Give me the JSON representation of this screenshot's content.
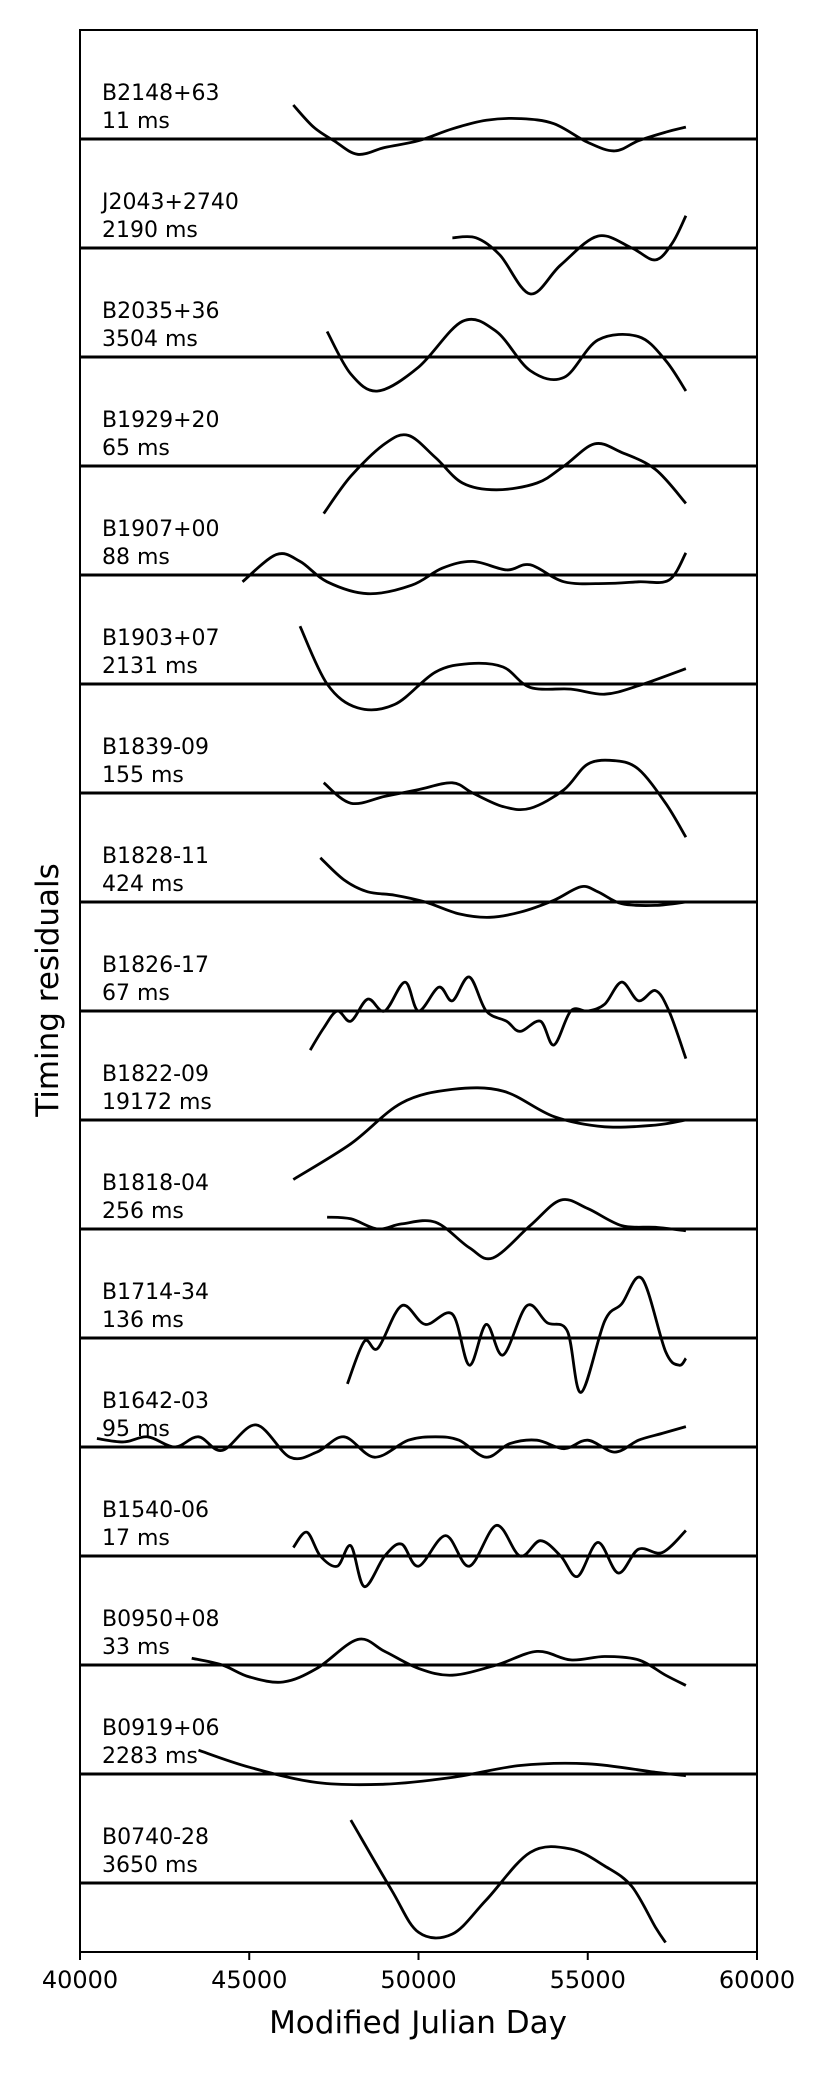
{
  "chart_data": {
    "type": "line",
    "title": "",
    "xlabel": "Modified Julian Day",
    "ylabel": "Timing residuals",
    "xlim": [
      40000,
      60000
    ],
    "xticks": [
      "40000",
      "45000",
      "50000",
      "55000",
      "60000"
    ],
    "series_color": "#000000",
    "series": [
      {
        "name": "B2148+63",
        "scale": "11 ms",
        "points": [
          [
            46300,
            1.0
          ],
          [
            46900,
            0.35
          ],
          [
            47500,
            -0.05
          ],
          [
            48200,
            -0.45
          ],
          [
            49000,
            -0.25
          ],
          [
            50000,
            -0.05
          ],
          [
            51000,
            0.3
          ],
          [
            52000,
            0.55
          ],
          [
            53000,
            0.6
          ],
          [
            54000,
            0.45
          ],
          [
            55000,
            -0.1
          ],
          [
            55800,
            -0.35
          ],
          [
            56500,
            -0.05
          ],
          [
            57300,
            0.2
          ],
          [
            57900,
            0.35
          ]
        ]
      },
      {
        "name": "J2043+2740",
        "scale": "2190 ms",
        "points": [
          [
            51000,
            0.3
          ],
          [
            51700,
            0.3
          ],
          [
            52400,
            -0.2
          ],
          [
            53300,
            -1.35
          ],
          [
            54200,
            -0.5
          ],
          [
            55300,
            0.35
          ],
          [
            56300,
            0.0
          ],
          [
            57000,
            -0.35
          ],
          [
            57500,
            0.15
          ],
          [
            57900,
            0.95
          ]
        ]
      },
      {
        "name": "B2035+36",
        "scale": "3504 ms",
        "points": [
          [
            47300,
            0.75
          ],
          [
            48000,
            -0.5
          ],
          [
            48800,
            -1.0
          ],
          [
            50000,
            -0.3
          ],
          [
            51300,
            1.05
          ],
          [
            52300,
            0.75
          ],
          [
            53300,
            -0.4
          ],
          [
            54300,
            -0.6
          ],
          [
            55300,
            0.5
          ],
          [
            56500,
            0.6
          ],
          [
            57300,
            -0.1
          ],
          [
            57900,
            -1.0
          ]
        ]
      },
      {
        "name": "B1929+20",
        "scale": "65 ms",
        "points": [
          [
            47200,
            -1.4
          ],
          [
            48000,
            -0.3
          ],
          [
            49000,
            0.65
          ],
          [
            49700,
            0.9
          ],
          [
            50500,
            0.25
          ],
          [
            51300,
            -0.5
          ],
          [
            52300,
            -0.7
          ],
          [
            53500,
            -0.5
          ],
          [
            54300,
            0.0
          ],
          [
            55200,
            0.65
          ],
          [
            56000,
            0.4
          ],
          [
            57000,
            -0.1
          ],
          [
            57900,
            -1.1
          ]
        ]
      },
      {
        "name": "B1907+00",
        "scale": "88 ms",
        "points": [
          [
            44800,
            -0.2
          ],
          [
            45800,
            0.6
          ],
          [
            46500,
            0.4
          ],
          [
            47300,
            -0.2
          ],
          [
            48500,
            -0.55
          ],
          [
            49800,
            -0.3
          ],
          [
            50700,
            0.2
          ],
          [
            51600,
            0.4
          ],
          [
            52600,
            0.15
          ],
          [
            53300,
            0.3
          ],
          [
            54300,
            -0.2
          ],
          [
            55500,
            -0.25
          ],
          [
            56500,
            -0.2
          ],
          [
            57400,
            -0.15
          ],
          [
            57900,
            0.65
          ]
        ]
      },
      {
        "name": "B1903+07",
        "scale": "2131 ms",
        "points": [
          [
            46500,
            1.7
          ],
          [
            47300,
            0.0
          ],
          [
            48200,
            -0.7
          ],
          [
            49300,
            -0.6
          ],
          [
            50500,
            0.35
          ],
          [
            51500,
            0.6
          ],
          [
            52500,
            0.5
          ],
          [
            53300,
            -0.1
          ],
          [
            54500,
            -0.15
          ],
          [
            55500,
            -0.3
          ],
          [
            56500,
            -0.05
          ],
          [
            57900,
            0.45
          ]
        ]
      },
      {
        "name": "B1839-09",
        "scale": "155 ms",
        "points": [
          [
            47200,
            0.3
          ],
          [
            48000,
            -0.3
          ],
          [
            49000,
            -0.1
          ],
          [
            50000,
            0.1
          ],
          [
            51000,
            0.3
          ],
          [
            51600,
            0.0
          ],
          [
            52500,
            -0.4
          ],
          [
            53300,
            -0.45
          ],
          [
            54300,
            0.1
          ],
          [
            55000,
            0.85
          ],
          [
            55800,
            0.95
          ],
          [
            56500,
            0.7
          ],
          [
            57300,
            -0.3
          ],
          [
            57900,
            -1.3
          ]
        ]
      },
      {
        "name": "B1828-11",
        "scale": "424 ms",
        "points": [
          [
            47100,
            1.3
          ],
          [
            47800,
            0.65
          ],
          [
            48500,
            0.3
          ],
          [
            49300,
            0.2
          ],
          [
            50200,
            0.0
          ],
          [
            51200,
            -0.35
          ],
          [
            52100,
            -0.45
          ],
          [
            53000,
            -0.3
          ],
          [
            54000,
            0.05
          ],
          [
            54800,
            0.45
          ],
          [
            55300,
            0.3
          ],
          [
            56000,
            -0.05
          ],
          [
            57000,
            -0.1
          ],
          [
            57900,
            0.0
          ]
        ]
      },
      {
        "name": "B1826-17",
        "scale": "67 ms",
        "points": [
          [
            46800,
            -1.15
          ],
          [
            47200,
            -0.5
          ],
          [
            47600,
            0.0
          ],
          [
            48000,
            -0.3
          ],
          [
            48500,
            0.35
          ],
          [
            49000,
            0.0
          ],
          [
            49600,
            0.85
          ],
          [
            50000,
            0.0
          ],
          [
            50600,
            0.7
          ],
          [
            51000,
            0.3
          ],
          [
            51500,
            1.0
          ],
          [
            52000,
            0.0
          ],
          [
            52600,
            -0.3
          ],
          [
            53000,
            -0.6
          ],
          [
            53600,
            -0.3
          ],
          [
            54000,
            -1.0
          ],
          [
            54500,
            0.0
          ],
          [
            55000,
            0.0
          ],
          [
            55500,
            0.2
          ],
          [
            56000,
            0.85
          ],
          [
            56500,
            0.3
          ],
          [
            57000,
            0.6
          ],
          [
            57400,
            0.0
          ],
          [
            57900,
            -1.4
          ]
        ]
      },
      {
        "name": "B1822-09",
        "scale": "19172 ms",
        "points": [
          [
            46300,
            -1.75
          ],
          [
            48000,
            -0.7
          ],
          [
            49500,
            0.5
          ],
          [
            51000,
            0.9
          ],
          [
            52500,
            0.85
          ],
          [
            54000,
            0.1
          ],
          [
            55500,
            -0.2
          ],
          [
            57000,
            -0.15
          ],
          [
            57900,
            0.0
          ]
        ]
      },
      {
        "name": "B1818-04",
        "scale": "256 ms",
        "points": [
          [
            47300,
            0.35
          ],
          [
            48000,
            0.3
          ],
          [
            48800,
            0.0
          ],
          [
            49500,
            0.15
          ],
          [
            50500,
            0.2
          ],
          [
            51500,
            -0.55
          ],
          [
            52200,
            -0.85
          ],
          [
            53300,
            0.1
          ],
          [
            54200,
            0.85
          ],
          [
            55000,
            0.6
          ],
          [
            56000,
            0.1
          ],
          [
            57000,
            0.05
          ],
          [
            57900,
            -0.05
          ]
        ]
      },
      {
        "name": "B1714-34",
        "scale": "136 ms",
        "points": [
          [
            47900,
            -1.35
          ],
          [
            48400,
            -0.1
          ],
          [
            48800,
            -0.3
          ],
          [
            49500,
            0.95
          ],
          [
            50200,
            0.4
          ],
          [
            51000,
            0.7
          ],
          [
            51500,
            -0.8
          ],
          [
            52000,
            0.4
          ],
          [
            52500,
            -0.5
          ],
          [
            53200,
            0.95
          ],
          [
            53800,
            0.45
          ],
          [
            54400,
            0.2
          ],
          [
            54800,
            -1.6
          ],
          [
            55500,
            0.5
          ],
          [
            56000,
            1.0
          ],
          [
            56600,
            1.75
          ],
          [
            57300,
            -0.4
          ],
          [
            57700,
            -0.8
          ],
          [
            57900,
            -0.6
          ]
        ]
      },
      {
        "name": "B1642-03",
        "scale": "95 ms",
        "points": [
          [
            40500,
            0.25
          ],
          [
            41300,
            0.15
          ],
          [
            42000,
            0.3
          ],
          [
            42800,
            0.0
          ],
          [
            43500,
            0.3
          ],
          [
            44200,
            -0.1
          ],
          [
            45200,
            0.65
          ],
          [
            46200,
            -0.3
          ],
          [
            47000,
            -0.15
          ],
          [
            47800,
            0.3
          ],
          [
            48700,
            -0.3
          ],
          [
            49700,
            0.2
          ],
          [
            50500,
            0.3
          ],
          [
            51200,
            0.2
          ],
          [
            52000,
            -0.3
          ],
          [
            52700,
            0.1
          ],
          [
            53500,
            0.2
          ],
          [
            54300,
            -0.05
          ],
          [
            55000,
            0.2
          ],
          [
            55800,
            -0.15
          ],
          [
            56500,
            0.2
          ],
          [
            57200,
            0.4
          ],
          [
            57900,
            0.6
          ]
        ]
      },
      {
        "name": "B1540-06",
        "scale": "17 ms",
        "points": [
          [
            46300,
            0.25
          ],
          [
            46700,
            0.7
          ],
          [
            47100,
            0.0
          ],
          [
            47600,
            -0.3
          ],
          [
            48000,
            0.3
          ],
          [
            48400,
            -0.9
          ],
          [
            49000,
            0.0
          ],
          [
            49500,
            0.35
          ],
          [
            50000,
            -0.3
          ],
          [
            50800,
            0.6
          ],
          [
            51500,
            -0.3
          ],
          [
            52300,
            0.9
          ],
          [
            53000,
            0.0
          ],
          [
            53600,
            0.45
          ],
          [
            54200,
            0.0
          ],
          [
            54700,
            -0.6
          ],
          [
            55300,
            0.4
          ],
          [
            55900,
            -0.5
          ],
          [
            56500,
            0.2
          ],
          [
            57200,
            0.1
          ],
          [
            57900,
            0.75
          ]
        ]
      },
      {
        "name": "B0950+08",
        "scale": "33 ms",
        "points": [
          [
            43300,
            0.2
          ],
          [
            44200,
            0.0
          ],
          [
            45000,
            -0.35
          ],
          [
            46000,
            -0.5
          ],
          [
            47000,
            -0.1
          ],
          [
            48200,
            0.75
          ],
          [
            49000,
            0.4
          ],
          [
            50000,
            -0.1
          ],
          [
            51000,
            -0.3
          ],
          [
            52300,
            0.0
          ],
          [
            53500,
            0.4
          ],
          [
            54500,
            0.15
          ],
          [
            55500,
            0.25
          ],
          [
            56500,
            0.15
          ],
          [
            57300,
            -0.3
          ],
          [
            57900,
            -0.6
          ]
        ]
      },
      {
        "name": "B0919+06",
        "scale": "2283 ms",
        "points": [
          [
            43500,
            0.7
          ],
          [
            45000,
            0.2
          ],
          [
            47000,
            -0.25
          ],
          [
            49000,
            -0.3
          ],
          [
            51000,
            -0.1
          ],
          [
            53000,
            0.25
          ],
          [
            55000,
            0.3
          ],
          [
            57000,
            0.05
          ],
          [
            57900,
            -0.05
          ]
        ]
      },
      {
        "name": "B0740-28",
        "scale": "3650 ms",
        "points": [
          [
            48000,
            1.85
          ],
          [
            49200,
            -0.2
          ],
          [
            50000,
            -1.45
          ],
          [
            51000,
            -1.5
          ],
          [
            52000,
            -0.5
          ],
          [
            53300,
            0.9
          ],
          [
            54500,
            1.0
          ],
          [
            55500,
            0.5
          ],
          [
            56300,
            -0.1
          ],
          [
            57000,
            -1.3
          ],
          [
            57300,
            -1.75
          ]
        ]
      }
    ]
  }
}
